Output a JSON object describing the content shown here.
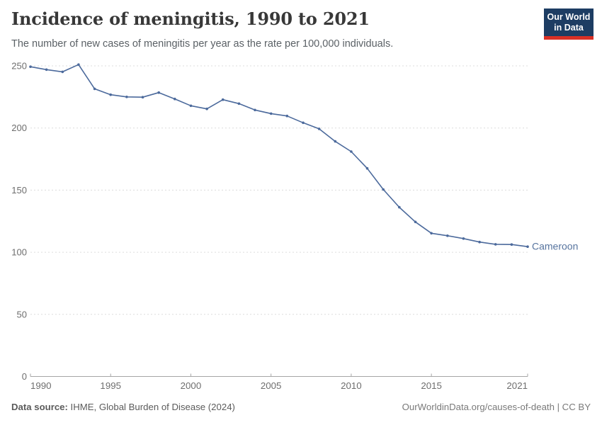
{
  "header": {
    "title": "Incidence of meningitis, 1990 to 2021",
    "subtitle": "The number of new cases of meningitis per year as the rate per 100,000 individuals.",
    "logo": {
      "line1": "Our World",
      "line2": "in Data",
      "bg_color": "#1d3d63",
      "accent_color": "#d93025"
    }
  },
  "chart_data": {
    "type": "line",
    "title": "Incidence of meningitis, 1990 to 2021",
    "xlabel": "",
    "ylabel": "",
    "xlim": [
      1990,
      2021
    ],
    "ylim": [
      0,
      250
    ],
    "grid": "horizontal-dashed",
    "legend_position": "end-of-line",
    "x_ticks": [
      1990,
      1995,
      2000,
      2005,
      2010,
      2015,
      2021
    ],
    "y_ticks": [
      0,
      50,
      100,
      150,
      200,
      250
    ],
    "x": [
      1990,
      1991,
      1992,
      1993,
      1994,
      1995,
      1996,
      1997,
      1998,
      1999,
      2000,
      2001,
      2002,
      2003,
      2004,
      2005,
      2006,
      2007,
      2008,
      2009,
      2010,
      2011,
      2012,
      2013,
      2014,
      2015,
      2016,
      2017,
      2018,
      2019,
      2020,
      2021
    ],
    "series": [
      {
        "name": "Cameroon",
        "color": "#4c6a9c",
        "label_color": "#57749f",
        "values": [
          249.3,
          247.0,
          245.2,
          251.0,
          231.5,
          226.8,
          225.0,
          224.8,
          228.5,
          223.4,
          217.9,
          215.4,
          222.8,
          219.6,
          214.5,
          211.6,
          209.7,
          204.2,
          199.3,
          189.2,
          181.0,
          167.5,
          150.5,
          136.2,
          124.4,
          115.3,
          113.3,
          111.0,
          108.2,
          106.4,
          106.2,
          104.5
        ]
      }
    ],
    "axis_color": "#a6a6a6",
    "gridline_color": "#dcdcdc",
    "tick_label_color": "#6e6e6e"
  },
  "footer": {
    "source_label": "Data source:",
    "source_text": " IHME, Global Burden of Disease (2024)",
    "attribution": "OurWorldinData.org/causes-of-death | CC BY"
  }
}
